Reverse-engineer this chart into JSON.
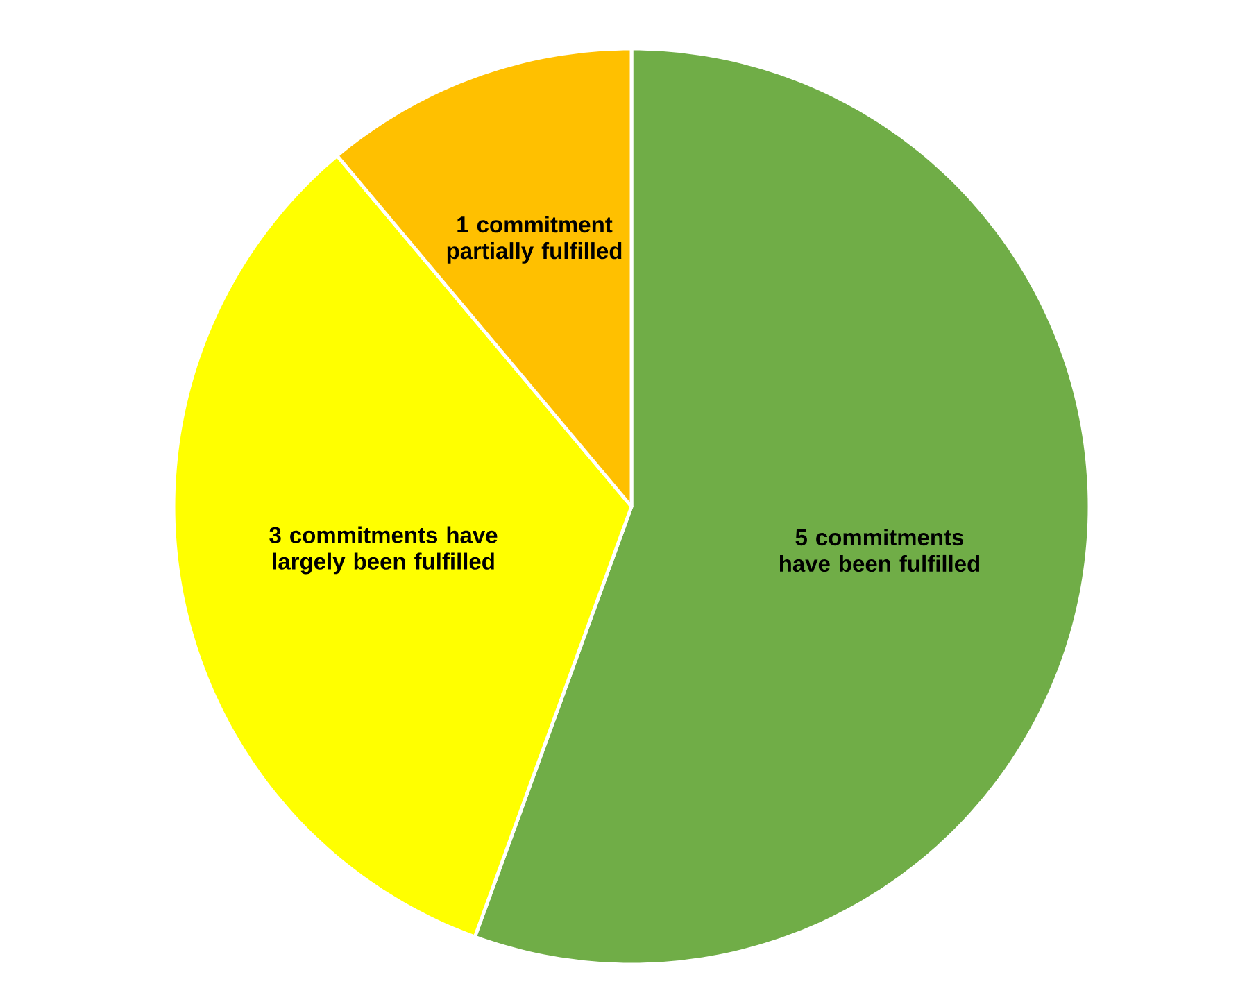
{
  "chart_data": {
    "type": "pie",
    "categories": [
      "5 commitments have been fulfilled",
      "3 commitments have largely been fulfilled",
      "1 commitment partially fulfilled"
    ],
    "values": [
      5,
      3,
      1
    ],
    "colors": [
      "#70ad47",
      "#ffff00",
      "#ffc000"
    ]
  }
}
